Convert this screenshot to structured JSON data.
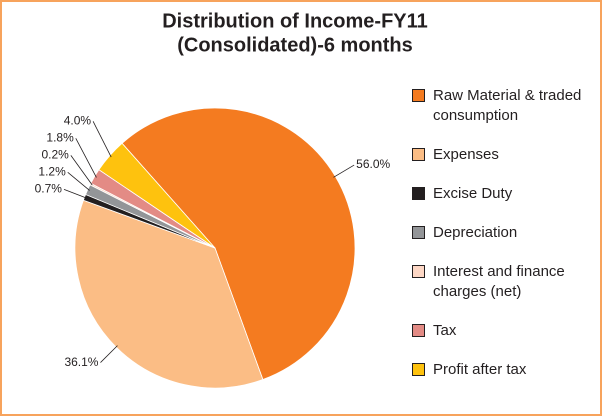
{
  "chart_data": {
    "type": "pie",
    "title": [
      "Distribution of Income-FY11",
      "(Consolidated)-6 months"
    ],
    "categories": [
      "Raw Material & traded consumption",
      "Expenses",
      "Excise Duty",
      "Depreciation",
      "Interest and finance charges (net)",
      "Tax",
      "Profit after tax"
    ],
    "values": [
      56.0,
      36.1,
      0.7,
      1.2,
      0.2,
      1.8,
      4.0
    ],
    "value_labels": [
      "56.0%",
      "36.1%",
      "0.7%",
      "1.2%",
      "0.2%",
      "1.8%",
      "4.0%"
    ],
    "colors": [
      "#f47b20",
      "#fbbd85",
      "#231f20",
      "#939598",
      "#fdd7c5",
      "#e38b85",
      "#fec20e"
    ],
    "legend": "right"
  }
}
